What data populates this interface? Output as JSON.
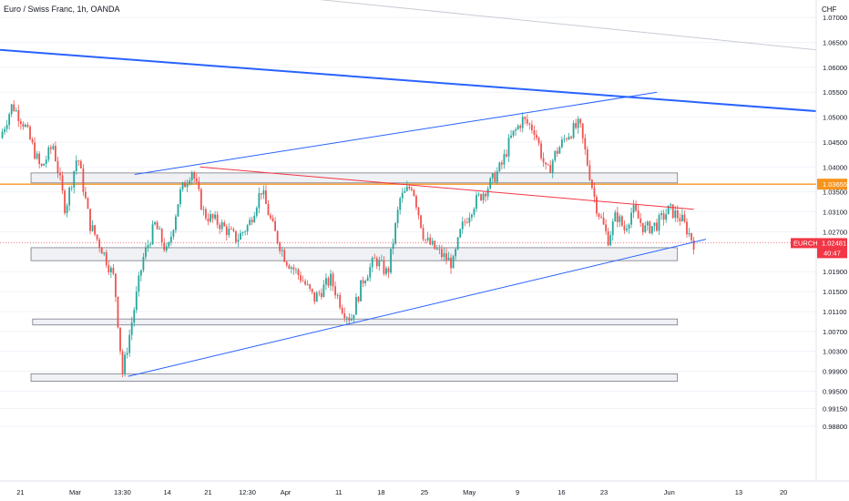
{
  "header": {
    "title": "Euro / Swiss Franc, 1h, OANDA"
  },
  "chart_data": {
    "type": "candlestick",
    "symbol": "EURCHF",
    "currency": "CHF",
    "y_axis": {
      "ylim": [
        0.977,
        1.0735
      ],
      "ticks": [
        "1.07000",
        "1.06500",
        "1.06000",
        "1.05500",
        "1.05000",
        "1.04500",
        "1.04000",
        "1.03500",
        "1.03100",
        "1.02700",
        "1.01900",
        "1.01500",
        "1.01100",
        "1.00700",
        "1.00300",
        "0.99900",
        "0.99500",
        "0.99150",
        "0.98800"
      ]
    },
    "x_axis": {
      "ticks": [
        {
          "label": "21",
          "t": 0.025
        },
        {
          "label": "Mar",
          "t": 0.092
        },
        {
          "label": "13:30",
          "t": 0.15
        },
        {
          "label": "14",
          "t": 0.205
        },
        {
          "label": "21",
          "t": 0.255
        },
        {
          "label": "12:30",
          "t": 0.303
        },
        {
          "label": "Apr",
          "t": 0.35
        },
        {
          "label": "11",
          "t": 0.415
        },
        {
          "label": "18",
          "t": 0.467
        },
        {
          "label": "25",
          "t": 0.52
        },
        {
          "label": "May",
          "t": 0.575
        },
        {
          "label": "9",
          "t": 0.634
        },
        {
          "label": "16",
          "t": 0.688
        },
        {
          "label": "23",
          "t": 0.74
        },
        {
          "label": "Jun",
          "t": 0.82
        },
        {
          "label": "13",
          "t": 0.905
        },
        {
          "label": "20",
          "t": 0.96
        }
      ]
    },
    "price_path": [
      [
        0.0,
        1.0458
      ],
      [
        0.015,
        1.0525
      ],
      [
        0.03,
        1.0485
      ],
      [
        0.05,
        1.0395
      ],
      [
        0.065,
        1.0445
      ],
      [
        0.08,
        1.0315
      ],
      [
        0.095,
        1.0425
      ],
      [
        0.11,
        1.0285
      ],
      [
        0.125,
        1.0235
      ],
      [
        0.14,
        1.0175
      ],
      [
        0.15,
        0.9985
      ],
      [
        0.16,
        1.0075
      ],
      [
        0.175,
        1.0215
      ],
      [
        0.19,
        1.0285
      ],
      [
        0.205,
        1.0225
      ],
      [
        0.22,
        1.0345
      ],
      [
        0.235,
        1.0395
      ],
      [
        0.25,
        1.0305
      ],
      [
        0.27,
        1.0285
      ],
      [
        0.29,
        1.0255
      ],
      [
        0.305,
        1.0285
      ],
      [
        0.32,
        1.0355
      ],
      [
        0.335,
        1.0275
      ],
      [
        0.35,
        1.0215
      ],
      [
        0.37,
        1.0175
      ],
      [
        0.385,
        1.0135
      ],
      [
        0.405,
        1.0175
      ],
      [
        0.42,
        1.0115
      ],
      [
        0.43,
        1.0095
      ],
      [
        0.445,
        1.0175
      ],
      [
        0.46,
        1.0215
      ],
      [
        0.475,
        1.0185
      ],
      [
        0.49,
        1.0335
      ],
      [
        0.505,
        1.0365
      ],
      [
        0.52,
        1.0255
      ],
      [
        0.54,
        1.0225
      ],
      [
        0.555,
        1.0205
      ],
      [
        0.565,
        1.0275
      ],
      [
        0.58,
        1.0325
      ],
      [
        0.6,
        1.0365
      ],
      [
        0.615,
        1.0405
      ],
      [
        0.625,
        1.0455
      ],
      [
        0.64,
        1.0495
      ],
      [
        0.655,
        1.0475
      ],
      [
        0.67,
        1.0385
      ],
      [
        0.68,
        1.0425
      ],
      [
        0.695,
        1.0465
      ],
      [
        0.71,
        1.0485
      ],
      [
        0.72,
        1.0405
      ],
      [
        0.73,
        1.0325
      ],
      [
        0.745,
        1.0255
      ],
      [
        0.755,
        1.0305
      ],
      [
        0.765,
        1.0275
      ],
      [
        0.775,
        1.0315
      ],
      [
        0.79,
        1.0275
      ],
      [
        0.805,
        1.0285
      ],
      [
        0.82,
        1.0315
      ],
      [
        0.835,
        1.0295
      ],
      [
        0.85,
        1.0248
      ]
    ],
    "horizontal_levels": [
      {
        "name": "orange-level",
        "value": 1.03655,
        "color": "#f7941d"
      }
    ],
    "zones": [
      {
        "name": "zone-1",
        "top": 1.0388,
        "bottom": 1.0368,
        "x0": 0.038,
        "x1": 0.83
      },
      {
        "name": "zone-2",
        "top": 1.0238,
        "bottom": 1.0212,
        "x0": 0.038,
        "x1": 0.83
      },
      {
        "name": "zone-3",
        "top": 1.0095,
        "bottom": 1.0083,
        "x0": 0.04,
        "x1": 0.83
      },
      {
        "name": "zone-4",
        "top": 0.9985,
        "bottom": 0.997,
        "x0": 0.038,
        "x1": 0.83
      }
    ],
    "trendlines": [
      {
        "name": "thick-blue-trend",
        "color": "#2962ff",
        "width": 2,
        "p1": [
          0.0,
          1.0635
        ],
        "p2": [
          1.0,
          1.0512
        ]
      },
      {
        "name": "faint-grey-trend",
        "color": "#c9ccd4",
        "width": 1,
        "p1": [
          0.155,
          1.0775
        ],
        "p2": [
          1.0,
          1.0635
        ]
      },
      {
        "name": "upper-channel",
        "color": "#2962ff",
        "width": 1,
        "p1": [
          0.165,
          1.0385
        ],
        "p2": [
          0.805,
          1.055
        ]
      },
      {
        "name": "lower-channel",
        "color": "#2962ff",
        "width": 1,
        "p1": [
          0.157,
          0.998
        ],
        "p2": [
          0.865,
          1.0255
        ]
      },
      {
        "name": "red-trend",
        "color": "#f23645",
        "width": 1,
        "p1": [
          0.245,
          1.04
        ],
        "p2": [
          0.85,
          1.0315
        ]
      }
    ],
    "price_tags": [
      {
        "label": "1.03655",
        "value": 1.03655,
        "bg": "#f7941d"
      },
      {
        "label": "EURCHF",
        "value": 1.02481,
        "bg": "#f23645"
      },
      {
        "label": "1.02481",
        "value": 1.02481,
        "bg": "#f23645"
      },
      {
        "label": "40:47",
        "value": 1.02481,
        "bg": "#f23645"
      }
    ],
    "current_price": 1.02481,
    "colors": {
      "up": "#26a69a",
      "down": "#ef5350",
      "axis_text": "#131722",
      "grid": "#f0f3fa"
    }
  }
}
